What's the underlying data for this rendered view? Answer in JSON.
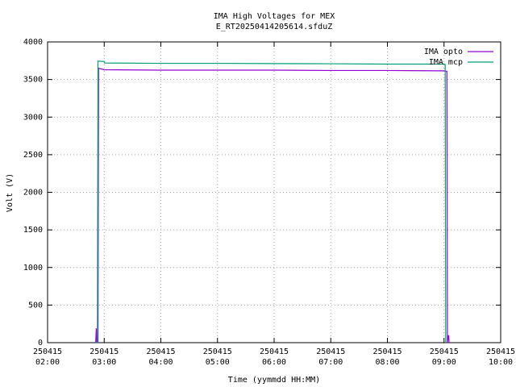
{
  "chart_data": {
    "type": "line",
    "title": "IMA High Voltages for MEX",
    "subtitle": "E_RT20250414205614.sfduZ",
    "x_label": "Time (yymmdd HH:MM)",
    "y_label": "Volt (V)",
    "xlim": [
      2,
      10
    ],
    "xticks": [
      {
        "value": 2,
        "label": "250415\n02:00"
      },
      {
        "value": 3,
        "label": "250415\n03:00"
      },
      {
        "value": 4,
        "label": "250415\n04:00"
      },
      {
        "value": 5,
        "label": "250415\n05:00"
      },
      {
        "value": 6,
        "label": "250415\n06:00"
      },
      {
        "value": 7,
        "label": "250415\n07:00"
      },
      {
        "value": 8,
        "label": "250415\n08:00"
      },
      {
        "value": 9,
        "label": "250415\n09:00"
      },
      {
        "value": 10,
        "label": "250415\n10:00"
      }
    ],
    "ylim": [
      0,
      4000
    ],
    "yticks": [
      0,
      500,
      1000,
      1500,
      2000,
      2500,
      3000,
      3500,
      4000
    ],
    "grid": true,
    "legend": "top-right",
    "series": [
      {
        "name": "IMA opto",
        "color": "#9400d3",
        "x": [
          2.85,
          2.86,
          2.87,
          2.89,
          2.9,
          3.0,
          4.0,
          5.0,
          6.0,
          7.0,
          8.0,
          9.0,
          9.05,
          9.06,
          9.08,
          9.09
        ],
        "values": [
          0,
          190,
          0,
          0,
          3650,
          3630,
          3625,
          3625,
          3625,
          3620,
          3620,
          3615,
          3610,
          0,
          100,
          0
        ]
      },
      {
        "name": "IMA mcp",
        "color": "#009e73",
        "x": [
          2.85,
          2.88,
          2.89,
          3.0,
          3.01,
          4.0,
          5.0,
          6.0,
          7.0,
          8.0,
          9.0,
          9.02,
          9.03
        ],
        "values": [
          0,
          0,
          3745,
          3740,
          3720,
          3715,
          3715,
          3712,
          3710,
          3705,
          3705,
          3700,
          0
        ]
      }
    ]
  }
}
